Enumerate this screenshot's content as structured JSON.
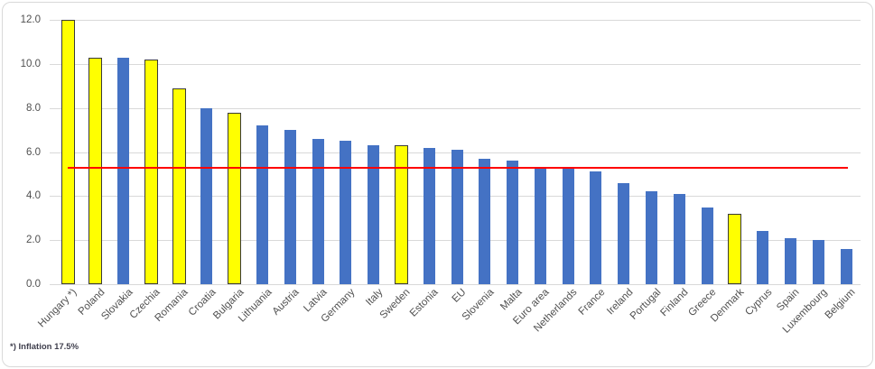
{
  "chart_data": {
    "type": "bar",
    "title": "",
    "xlabel": "",
    "ylabel": "",
    "categories": [
      "Hungary *)",
      "Poland",
      "Slovakia",
      "Czechia",
      "Romania",
      "Croatia",
      "Bulgaria",
      "Lithuania",
      "Austria",
      "Latvia",
      "Germany",
      "Italy",
      "Sweden",
      "Estonia",
      "EU",
      "Slovenia",
      "Malta",
      "Euro area",
      "Netherlands",
      "France",
      "Ireland",
      "Portugal",
      "Finland",
      "Greece",
      "Denmark",
      "Cyprus",
      "Spain",
      "Luxembourg",
      "Belgium"
    ],
    "values": [
      12.0,
      10.3,
      10.3,
      10.2,
      8.9,
      8.0,
      7.8,
      7.2,
      7.0,
      6.6,
      6.5,
      6.3,
      6.3,
      6.2,
      6.1,
      5.7,
      5.6,
      5.3,
      5.3,
      5.1,
      4.6,
      4.2,
      4.1,
      3.5,
      3.2,
      2.4,
      2.1,
      2.0,
      1.6
    ],
    "bar_colors": [
      "yellow",
      "yellow",
      "blue",
      "yellow",
      "yellow",
      "blue",
      "yellow",
      "blue",
      "blue",
      "blue",
      "blue",
      "blue",
      "yellow",
      "blue",
      "blue",
      "blue",
      "blue",
      "blue",
      "blue",
      "blue",
      "blue",
      "blue",
      "blue",
      "blue",
      "yellow",
      "blue",
      "blue",
      "blue",
      "blue"
    ],
    "hungary_bar_clipped_at": 12.0,
    "hungary_actual_value": 17.5,
    "footnote": "*) Inflation 17.5%",
    "reference_line_value": 5.3,
    "ylim": [
      0,
      12
    ],
    "ytick_step": 2,
    "yticks": [
      "0.0",
      "2.0",
      "4.0",
      "6.0",
      "8.0",
      "10.0",
      "12.0"
    ],
    "xlabel_rotation_deg": 45,
    "grid": true,
    "legend": "none",
    "colors": {
      "blue": "#4472C4",
      "yellow": "#FFFF00",
      "yellow_border": "#3A3A3A",
      "reference_line": "#FF0000",
      "gridline": "#D9D9D9",
      "axis_text": "#505050"
    }
  }
}
